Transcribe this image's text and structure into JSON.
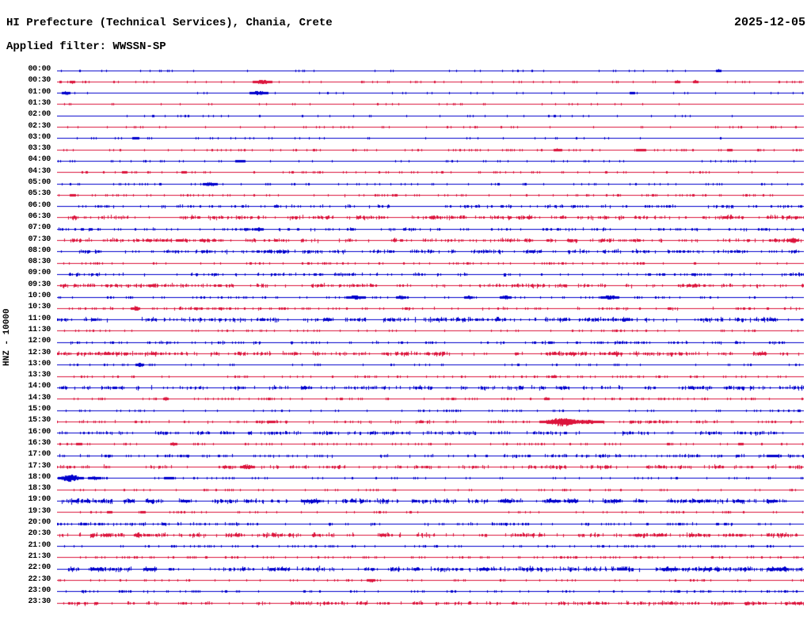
{
  "header": {
    "title": "HI Prefecture (Technical Services), Chania, Crete",
    "filter_label": "Applied filter: WWSSN-SP",
    "date": "2025-12-05"
  },
  "station_label": "HNZ - 10000",
  "palette": {
    "blue": "#0000cd",
    "red": "#dc143c",
    "text": "#000000",
    "background": "#ffffff"
  },
  "chart_data": {
    "type": "line",
    "subtype": "helicorder-seismogram",
    "title": "HI Prefecture (Technical Services), Chania, Crete",
    "date": "2025-12-05",
    "applied_filter": "WWSSN-SP",
    "channel": "HNZ",
    "gain": "10000",
    "trace_span_minutes": 30,
    "first_row_time": "00:00",
    "last_row_time": "23:30",
    "row_color_cycle": [
      "blue",
      "red"
    ],
    "notable_events": [
      {
        "row": "00:30",
        "approx_minute": 8,
        "color": "red",
        "size": "small"
      },
      {
        "row": "01:00",
        "approx_minute": 8,
        "color": "blue",
        "size": "small"
      },
      {
        "row": "10:00",
        "approx_minute": 13,
        "color": "blue",
        "size": "small-cluster"
      },
      {
        "row": "15:30",
        "approx_minute": 20,
        "color": "red",
        "size": "large"
      },
      {
        "row": "18:00",
        "approx_minute": 1,
        "color": "blue",
        "size": "medium"
      }
    ],
    "rows": [
      {
        "time": "00:00",
        "color": "blue",
        "noise": 0.07,
        "bursts": [
          {
            "pos": 0.885,
            "amp": 2,
            "width": 2
          }
        ]
      },
      {
        "time": "00:30",
        "color": "red",
        "noise": 0.1,
        "bursts": [
          {
            "pos": 0.02,
            "amp": 2,
            "width": 2
          },
          {
            "pos": 0.275,
            "amp": 2.5,
            "width": 7
          },
          {
            "pos": 0.83,
            "amp": 2,
            "width": 2
          },
          {
            "pos": 0.855,
            "amp": 2,
            "width": 2
          }
        ]
      },
      {
        "time": "01:00",
        "color": "blue",
        "noise": 0.07,
        "bursts": [
          {
            "pos": 0.012,
            "amp": 2,
            "width": 3
          },
          {
            "pos": 0.27,
            "amp": 2.5,
            "width": 6
          },
          {
            "pos": 0.77,
            "amp": 1.5,
            "width": 2
          }
        ]
      },
      {
        "time": "01:30",
        "color": "red",
        "noise": 0.06,
        "bursts": []
      },
      {
        "time": "02:00",
        "color": "blue",
        "noise": 0.06,
        "bursts": []
      },
      {
        "time": "02:30",
        "color": "red",
        "noise": 0.08,
        "bursts": []
      },
      {
        "time": "03:00",
        "color": "blue",
        "noise": 0.08,
        "bursts": [
          {
            "pos": 0.105,
            "amp": 1.5,
            "width": 3
          }
        ]
      },
      {
        "time": "03:30",
        "color": "red",
        "noise": 0.14,
        "bursts": [
          {
            "pos": 0.67,
            "amp": 2,
            "width": 3
          },
          {
            "pos": 0.78,
            "amp": 2,
            "width": 3
          },
          {
            "pos": 0.9,
            "amp": 1.5,
            "width": 2
          }
        ]
      },
      {
        "time": "04:00",
        "color": "blue",
        "noise": 0.1,
        "bursts": [
          {
            "pos": 0.245,
            "amp": 1.5,
            "width": 4
          }
        ]
      },
      {
        "time": "04:30",
        "color": "red",
        "noise": 0.14,
        "bursts": [
          {
            "pos": 0.09,
            "amp": 1.5,
            "width": 2
          },
          {
            "pos": 0.17,
            "amp": 1.5,
            "width": 2
          }
        ]
      },
      {
        "time": "05:00",
        "color": "blue",
        "noise": 0.1,
        "bursts": [
          {
            "pos": 0.205,
            "amp": 2.5,
            "width": 5
          }
        ]
      },
      {
        "time": "05:30",
        "color": "red",
        "noise": 0.18,
        "bursts": [
          {
            "pos": 0.02,
            "amp": 1.5,
            "width": 2
          }
        ]
      },
      {
        "time": "06:00",
        "color": "blue",
        "noise": 0.28,
        "bursts": []
      },
      {
        "time": "06:30",
        "color": "red",
        "noise": 0.45,
        "bursts": []
      },
      {
        "time": "07:00",
        "color": "blue",
        "noise": 0.25,
        "bursts": [
          {
            "pos": 0.27,
            "amp": 2,
            "width": 3
          }
        ]
      },
      {
        "time": "07:30",
        "color": "red",
        "noise": 0.4,
        "bursts": [
          {
            "pos": 0.985,
            "amp": 3,
            "width": 4
          }
        ]
      },
      {
        "time": "08:00",
        "color": "blue",
        "noise": 0.4,
        "bursts": []
      },
      {
        "time": "08:30",
        "color": "red",
        "noise": 0.16,
        "bursts": []
      },
      {
        "time": "09:00",
        "color": "blue",
        "noise": 0.3,
        "bursts": []
      },
      {
        "time": "09:30",
        "color": "red",
        "noise": 0.4,
        "bursts": []
      },
      {
        "time": "10:00",
        "color": "blue",
        "noise": 0.13,
        "bursts": [
          {
            "pos": 0.4,
            "amp": 2.5,
            "width": 7
          },
          {
            "pos": 0.46,
            "amp": 2,
            "width": 4
          },
          {
            "pos": 0.55,
            "amp": 2,
            "width": 3
          },
          {
            "pos": 0.6,
            "amp": 2.5,
            "width": 4
          },
          {
            "pos": 0.74,
            "amp": 2.5,
            "width": 6
          }
        ]
      },
      {
        "time": "10:30",
        "color": "red",
        "noise": 0.25,
        "bursts": [
          {
            "pos": 0.105,
            "amp": 3,
            "width": 3
          }
        ]
      },
      {
        "time": "11:00",
        "color": "blue",
        "noise": 0.5,
        "bursts": []
      },
      {
        "time": "11:30",
        "color": "red",
        "noise": 0.12,
        "bursts": []
      },
      {
        "time": "12:00",
        "color": "blue",
        "noise": 0.28,
        "bursts": []
      },
      {
        "time": "12:30",
        "color": "red",
        "noise": 0.45,
        "bursts": []
      },
      {
        "time": "13:00",
        "color": "blue",
        "noise": 0.1,
        "bursts": [
          {
            "pos": 0.11,
            "amp": 2.5,
            "width": 3
          }
        ]
      },
      {
        "time": "13:30",
        "color": "red",
        "noise": 0.16,
        "bursts": [
          {
            "pos": 0.665,
            "amp": 2,
            "width": 2
          }
        ]
      },
      {
        "time": "14:00",
        "color": "blue",
        "noise": 0.45,
        "bursts": []
      },
      {
        "time": "14:30",
        "color": "red",
        "noise": 0.18,
        "bursts": [
          {
            "pos": 0.145,
            "amp": 2.5,
            "width": 2
          },
          {
            "pos": 0.655,
            "amp": 2,
            "width": 2
          }
        ]
      },
      {
        "time": "15:00",
        "color": "blue",
        "noise": 0.14,
        "bursts": []
      },
      {
        "time": "15:30",
        "color": "red",
        "noise": 0.3,
        "bursts": [
          {
            "pos": 0.675,
            "amp": 5,
            "width": 14
          },
          {
            "pos": 0.705,
            "amp": 2.5,
            "width": 14
          }
        ]
      },
      {
        "time": "16:00",
        "color": "blue",
        "noise": 0.4,
        "bursts": []
      },
      {
        "time": "16:30",
        "color": "red",
        "noise": 0.12,
        "bursts": [
          {
            "pos": 0.03,
            "amp": 1.5,
            "width": 2
          },
          {
            "pos": 0.155,
            "amp": 2,
            "width": 2
          },
          {
            "pos": 0.915,
            "amp": 1.5,
            "width": 2
          }
        ]
      },
      {
        "time": "17:00",
        "color": "blue",
        "noise": 0.28,
        "bursts": [
          {
            "pos": 0.955,
            "amp": 2,
            "width": 3
          }
        ]
      },
      {
        "time": "17:30",
        "color": "red",
        "noise": 0.38,
        "bursts": [
          {
            "pos": 0.255,
            "amp": 3,
            "width": 5
          }
        ]
      },
      {
        "time": "18:00",
        "color": "blue",
        "noise": 0.12,
        "bursts": [
          {
            "pos": 0.018,
            "amp": 4.5,
            "width": 8
          },
          {
            "pos": 0.05,
            "amp": 2,
            "width": 5
          },
          {
            "pos": 0.15,
            "amp": 1.5,
            "width": 4
          }
        ]
      },
      {
        "time": "18:30",
        "color": "red",
        "noise": 0.12,
        "bursts": []
      },
      {
        "time": "19:00",
        "color": "blue",
        "noise": 0.6,
        "bursts": []
      },
      {
        "time": "19:30",
        "color": "red",
        "noise": 0.12,
        "bursts": [
          {
            "pos": 0.07,
            "amp": 1.5,
            "width": 2
          },
          {
            "pos": 0.115,
            "amp": 1.5,
            "width": 2
          }
        ]
      },
      {
        "time": "20:00",
        "color": "blue",
        "noise": 0.25,
        "bursts": []
      },
      {
        "time": "20:30",
        "color": "red",
        "noise": 0.5,
        "bursts": []
      },
      {
        "time": "21:00",
        "color": "blue",
        "noise": 0.18,
        "bursts": []
      },
      {
        "time": "21:30",
        "color": "red",
        "noise": 0.2,
        "bursts": []
      },
      {
        "time": "22:00",
        "color": "blue",
        "noise": 0.6,
        "bursts": []
      },
      {
        "time": "22:30",
        "color": "red",
        "noise": 0.12,
        "bursts": [
          {
            "pos": 0.42,
            "amp": 2,
            "width": 3
          }
        ]
      },
      {
        "time": "23:00",
        "color": "blue",
        "noise": 0.2,
        "bursts": []
      },
      {
        "time": "23:30",
        "color": "red",
        "noise": 0.4,
        "bursts": []
      }
    ]
  }
}
